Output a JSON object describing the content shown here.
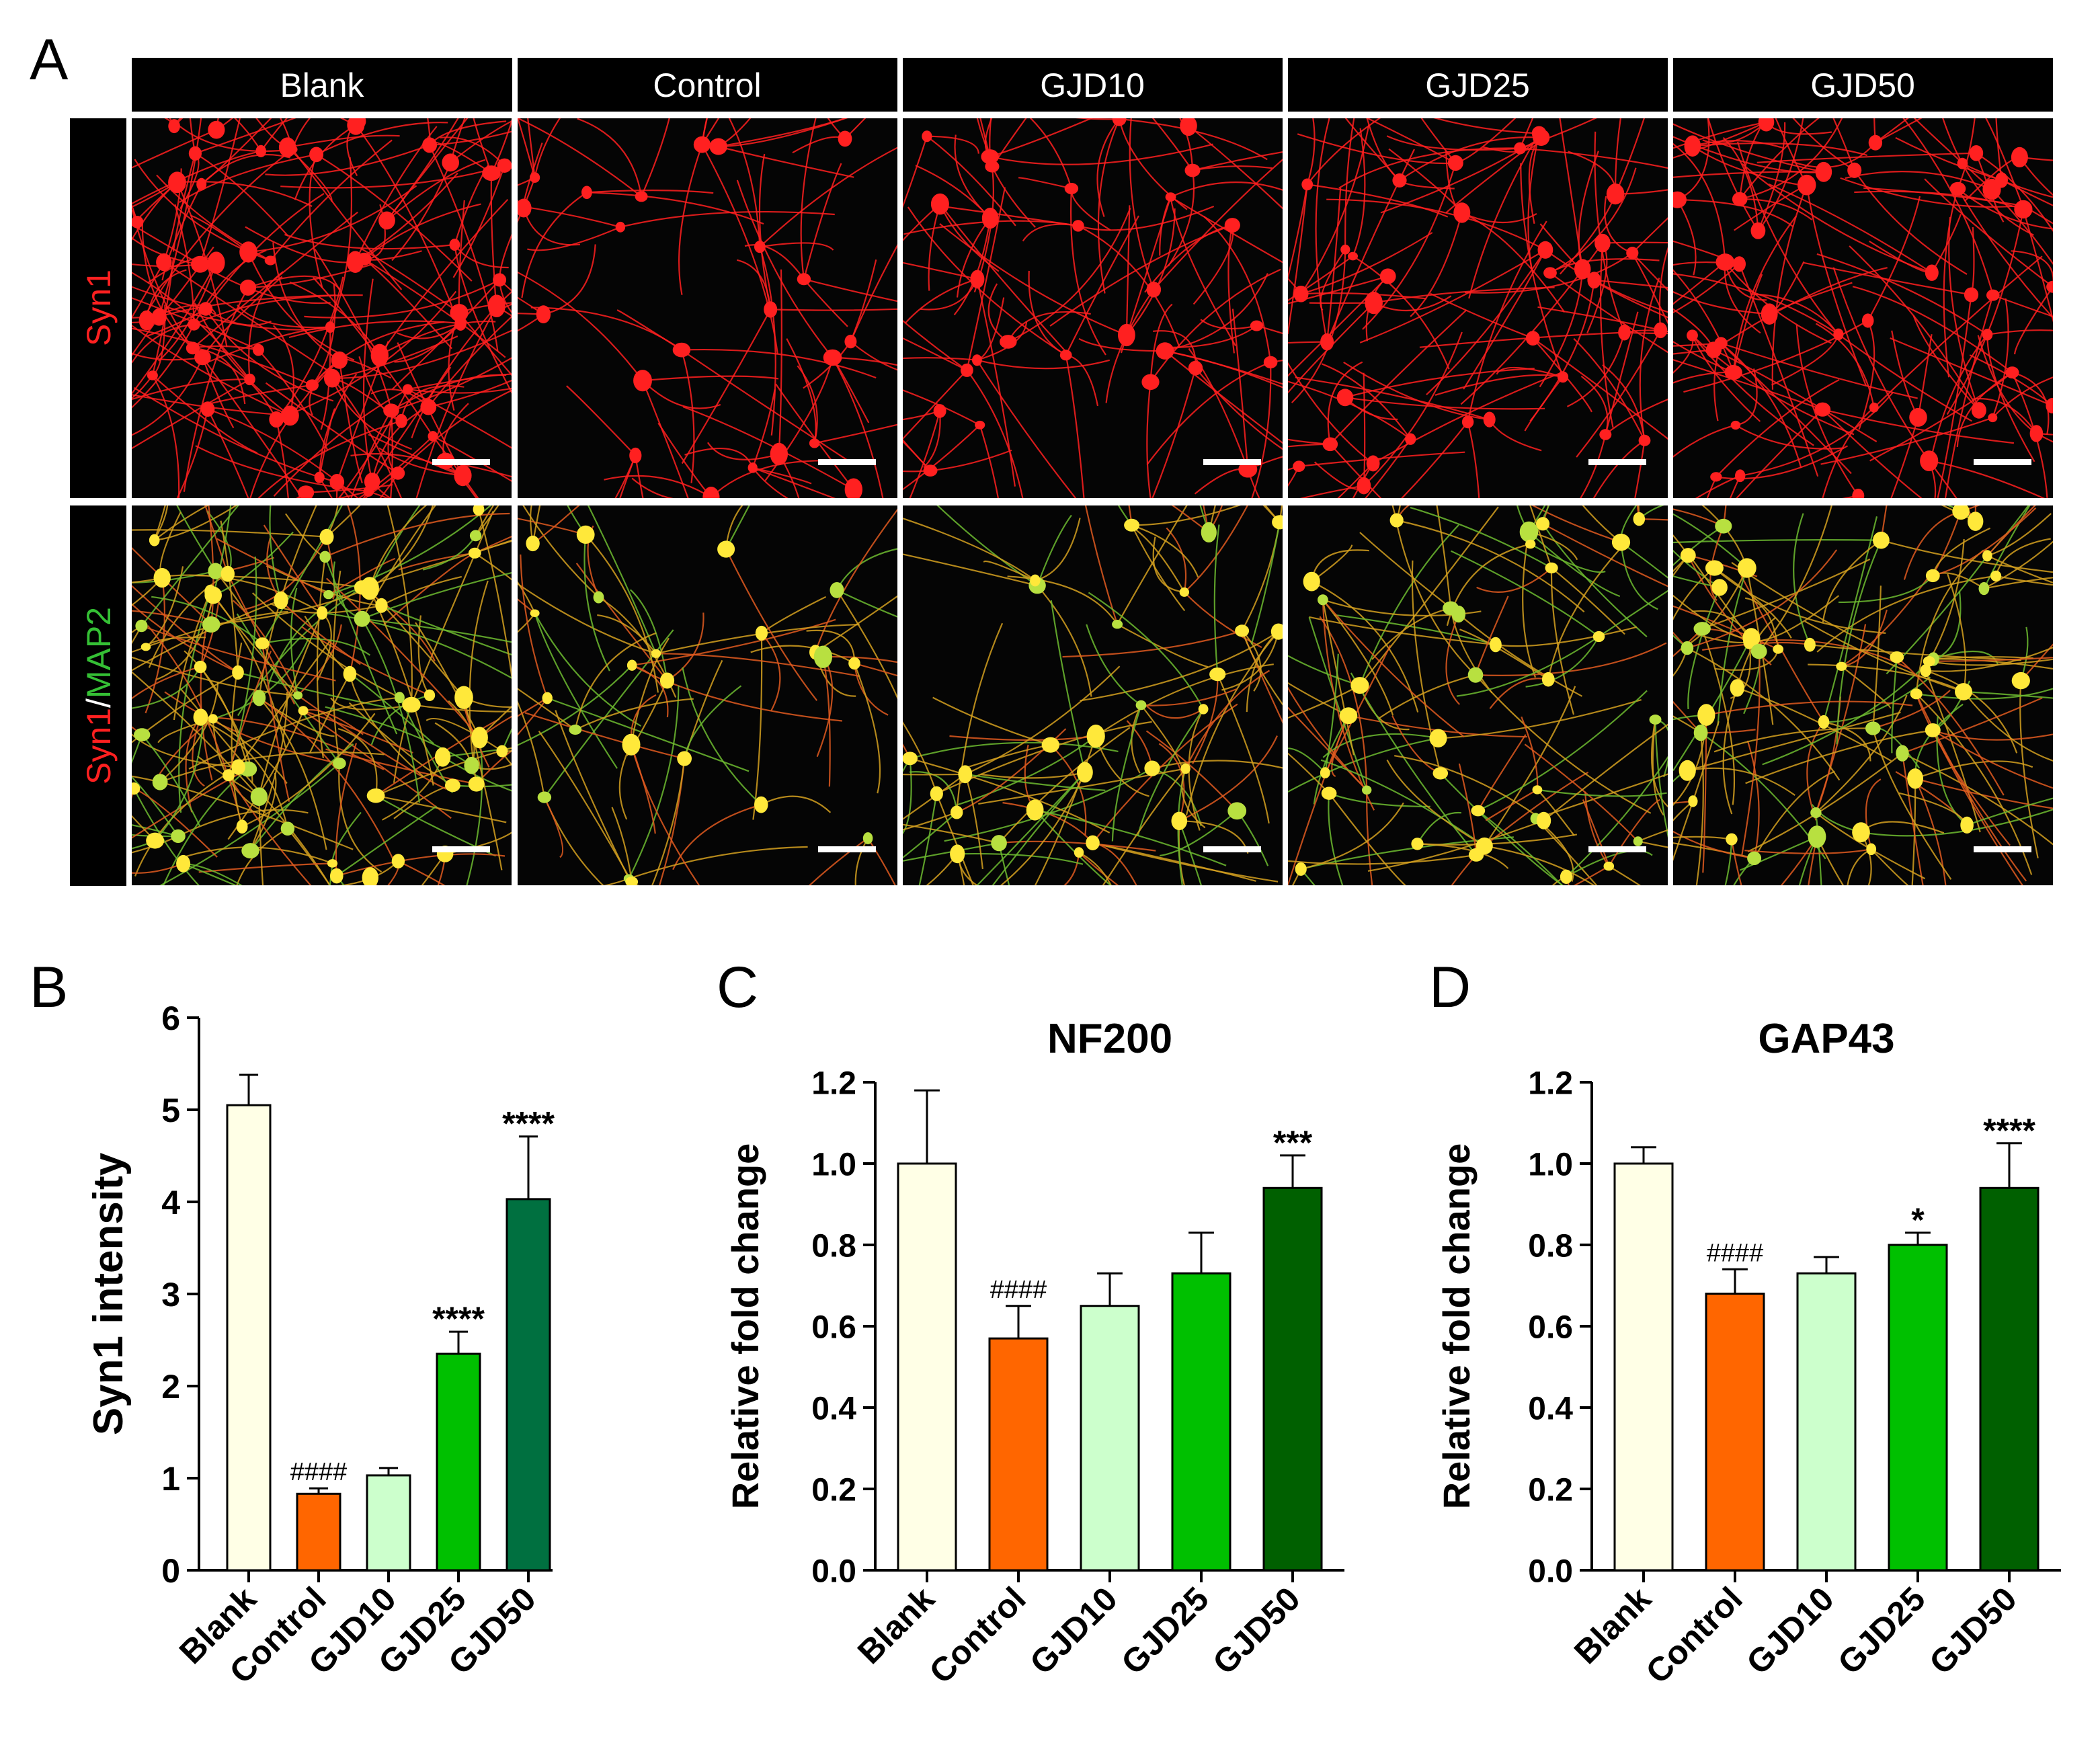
{
  "panel_labels": {
    "a": "A",
    "b": "B",
    "c": "C",
    "d": "D"
  },
  "microscopy": {
    "columns": [
      "Blank",
      "Control",
      "GJD10",
      "GJD25",
      "GJD50"
    ],
    "rows": [
      {
        "stain": "Syn1"
      },
      {
        "stain_red": "Syn1",
        "separator": "/",
        "stain_green": "MAP2"
      }
    ]
  },
  "colors": {
    "syn1_red": "#ff2020",
    "map2_green": "#35c035",
    "merge_yellow": "#ffe83a",
    "Blank": "#ffffe6",
    "Control": "#ff6600",
    "GJD10": "#ccffcc",
    "GJD25": "#00c000",
    "GJD50_B": "#007040",
    "GJD50_CD": "#006000"
  },
  "chart_data": [
    {
      "panel": "B",
      "type": "bar",
      "title": "",
      "ylabel": "Syn1 intensity",
      "categories": [
        "Blank",
        "Control",
        "GJD10",
        "GJD25",
        "GJD50"
      ],
      "values": [
        5.05,
        0.83,
        1.03,
        2.35,
        4.03
      ],
      "errors": [
        0.33,
        0.06,
        0.08,
        0.24,
        0.68
      ],
      "annotations": [
        "",
        "####",
        "",
        "****",
        "****"
      ],
      "ylim": [
        0,
        6
      ],
      "yticks": [
        "0",
        "1",
        "2",
        "3",
        "4",
        "5",
        "6"
      ]
    },
    {
      "panel": "C",
      "type": "bar",
      "title": "NF200",
      "ylabel": "Relative fold change",
      "categories": [
        "Blank",
        "Control",
        "GJD10",
        "GJD25",
        "GJD50"
      ],
      "values": [
        1.0,
        0.57,
        0.65,
        0.73,
        0.94
      ],
      "errors": [
        0.18,
        0.08,
        0.08,
        0.1,
        0.08
      ],
      "annotations": [
        "",
        "####",
        "",
        "",
        "***"
      ],
      "ylim": [
        0,
        1.2
      ],
      "yticks": [
        "0.0",
        "0.2",
        "0.4",
        "0.6",
        "0.8",
        "1.0",
        "1.2"
      ]
    },
    {
      "panel": "D",
      "type": "bar",
      "title": "GAP43",
      "ylabel": "Relative fold change",
      "categories": [
        "Blank",
        "Control",
        "GJD10",
        "GJD25",
        "GJD50"
      ],
      "values": [
        1.0,
        0.68,
        0.73,
        0.8,
        0.94
      ],
      "errors": [
        0.04,
        0.06,
        0.04,
        0.03,
        0.11
      ],
      "annotations": [
        "",
        "####",
        "",
        "*",
        "****"
      ],
      "ylim": [
        0,
        1.2
      ],
      "yticks": [
        "0.0",
        "0.2",
        "0.4",
        "0.6",
        "0.8",
        "1.0",
        "1.2"
      ]
    }
  ]
}
